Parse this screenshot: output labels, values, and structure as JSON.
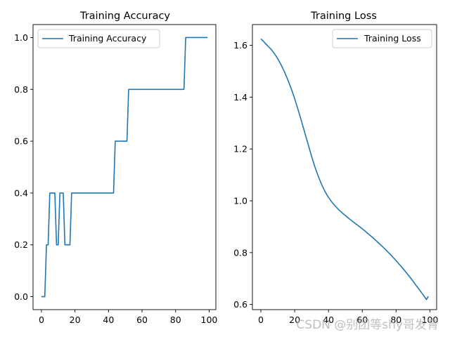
{
  "watermark": "CSDN @别团等shy哥发育",
  "chart_data": [
    {
      "type": "line",
      "title": "Training Accuracy",
      "xlabel": "",
      "ylabel": "",
      "xlim": [
        -5,
        104
      ],
      "ylim": [
        -0.05,
        1.05
      ],
      "xticks": [
        0,
        20,
        40,
        60,
        80,
        100
      ],
      "yticks": [
        0.0,
        0.2,
        0.4,
        0.6,
        0.8,
        1.0
      ],
      "xtick_labels": [
        "0",
        "20",
        "40",
        "60",
        "80",
        "100"
      ],
      "ytick_labels": [
        "0.0",
        "0.2",
        "0.4",
        "0.6",
        "0.8",
        "1.0"
      ],
      "legend_position": "upper-left",
      "series": [
        {
          "name": "Training Accuracy",
          "color": "#1f77b4",
          "x": [
            0,
            1,
            2,
            3,
            4,
            5,
            6,
            7,
            8,
            9,
            10,
            11,
            12,
            13,
            14,
            15,
            16,
            17,
            18,
            19,
            20,
            21,
            22,
            23,
            24,
            25,
            26,
            27,
            28,
            29,
            30,
            31,
            32,
            33,
            34,
            35,
            36,
            37,
            38,
            39,
            40,
            41,
            42,
            43,
            44,
            45,
            46,
            47,
            48,
            49,
            50,
            51,
            52,
            53,
            54,
            55,
            56,
            57,
            58,
            59,
            60,
            61,
            62,
            63,
            64,
            65,
            66,
            67,
            68,
            69,
            70,
            71,
            72,
            73,
            74,
            75,
            76,
            77,
            78,
            79,
            80,
            81,
            82,
            83,
            84,
            85,
            86,
            87,
            88,
            89,
            90,
            91,
            92,
            93,
            94,
            95,
            96,
            97,
            98,
            99
          ],
          "y": [
            0,
            0,
            0,
            0.2,
            0.2,
            0.4,
            0.4,
            0.4,
            0.4,
            0.2,
            0.2,
            0.4,
            0.4,
            0.4,
            0.2,
            0.2,
            0.2,
            0.2,
            0.4,
            0.4,
            0.4,
            0.4,
            0.4,
            0.4,
            0.4,
            0.4,
            0.4,
            0.4,
            0.4,
            0.4,
            0.4,
            0.4,
            0.4,
            0.4,
            0.4,
            0.4,
            0.4,
            0.4,
            0.4,
            0.4,
            0.4,
            0.4,
            0.4,
            0.4,
            0.6,
            0.6,
            0.6,
            0.6,
            0.6,
            0.6,
            0.6,
            0.6,
            0.8,
            0.8,
            0.8,
            0.8,
            0.8,
            0.8,
            0.8,
            0.8,
            0.8,
            0.8,
            0.8,
            0.8,
            0.8,
            0.8,
            0.8,
            0.8,
            0.8,
            0.8,
            0.8,
            0.8,
            0.8,
            0.8,
            0.8,
            0.8,
            0.8,
            0.8,
            0.8,
            0.8,
            0.8,
            0.8,
            0.8,
            0.8,
            0.8,
            0.8,
            1,
            1,
            1,
            1,
            1,
            1,
            1,
            1,
            1,
            1,
            1,
            1,
            1,
            1
          ]
        }
      ]
    },
    {
      "type": "line",
      "title": "Training Loss",
      "xlabel": "",
      "ylabel": "",
      "xlim": [
        -5,
        104
      ],
      "ylim": [
        0.58,
        1.68
      ],
      "xticks": [
        0,
        20,
        40,
        60,
        80,
        100
      ],
      "yticks": [
        0.6,
        0.8,
        1.0,
        1.2,
        1.4,
        1.6
      ],
      "xtick_labels": [
        "0",
        "20",
        "40",
        "60",
        "80",
        "100"
      ],
      "ytick_labels": [
        "0.6",
        "0.8",
        "1.0",
        "1.2",
        "1.4",
        "1.6"
      ],
      "legend_position": "upper-right",
      "series": [
        {
          "name": "Training Loss",
          "color": "#1f77b4",
          "x": [
            0,
            2,
            4,
            6,
            8,
            10,
            12,
            14,
            16,
            18,
            20,
            22,
            24,
            26,
            28,
            30,
            32,
            34,
            36,
            38,
            40,
            42,
            44,
            46,
            48,
            50,
            52,
            54,
            56,
            58,
            60,
            62,
            64,
            66,
            68,
            70,
            72,
            74,
            76,
            78,
            80,
            82,
            84,
            86,
            88,
            90,
            92,
            94,
            96,
            98,
            99
          ],
          "y": [
            1.625,
            1.612,
            1.598,
            1.585,
            1.568,
            1.548,
            1.524,
            1.497,
            1.466,
            1.432,
            1.394,
            1.352,
            1.308,
            1.262,
            1.217,
            1.172,
            1.13,
            1.094,
            1.062,
            1.035,
            1.013,
            0.995,
            0.98,
            0.966,
            0.954,
            0.943,
            0.932,
            0.922,
            0.912,
            0.902,
            0.892,
            0.881,
            0.87,
            0.859,
            0.847,
            0.835,
            0.823,
            0.81,
            0.797,
            0.783,
            0.769,
            0.754,
            0.739,
            0.723,
            0.707,
            0.69,
            0.672,
            0.655,
            0.637,
            0.619,
            0.631
          ]
        }
      ]
    }
  ]
}
